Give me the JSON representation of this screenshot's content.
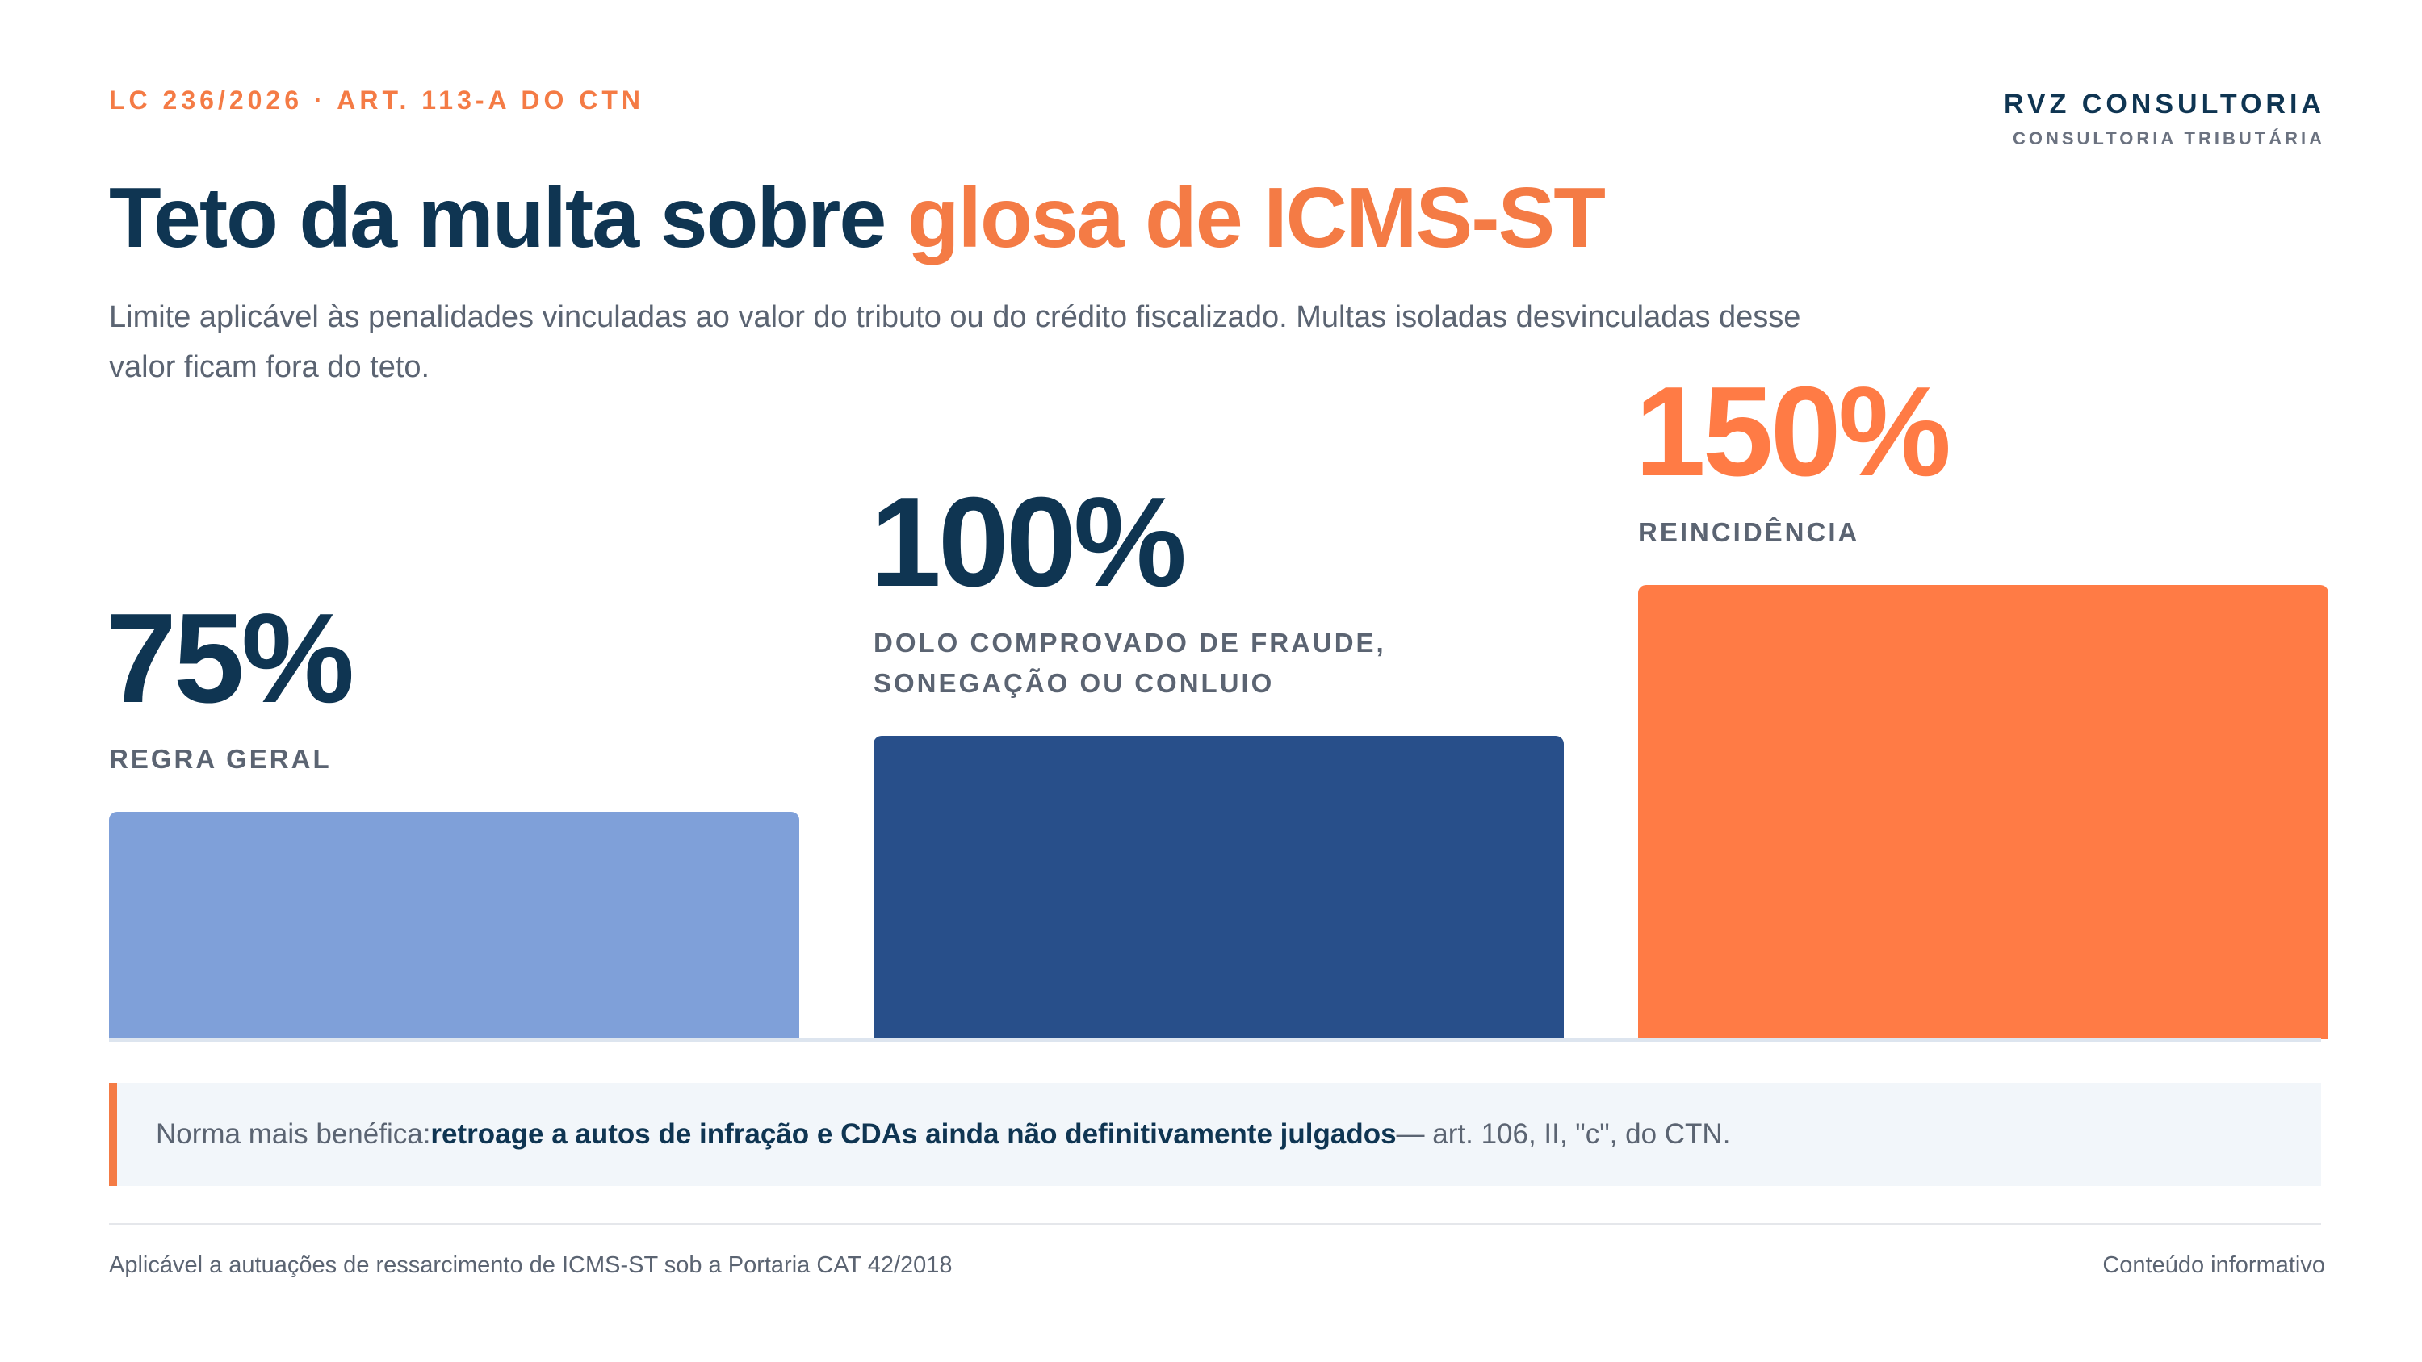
{
  "header": {
    "eyebrow": "LC 236/2026 · ART. 113-A DO CTN",
    "title_main": "Teto da multa sobre ",
    "title_highlight": "glosa de ICMS-ST",
    "subtitle": "Limite aplicável às penalidades vinculadas ao valor do tributo ou do crédito fiscalizado. Multas isoladas desvinculadas desse valor ficam fora do teto."
  },
  "brand": {
    "name": "RVZ CONSULTORIA",
    "tagline": "CONSULTORIA TRIBUTÁRIA"
  },
  "chart_data": {
    "type": "bar",
    "categories": [
      "REGRA GERAL",
      "DOLO COMPROVADO DE FRAUDE, SONEGAÇÃO OU CONLUIO",
      "REINCIDÊNCIA"
    ],
    "values": [
      75,
      100,
      150
    ],
    "value_labels": [
      "75%",
      "100%",
      "150%"
    ],
    "colors": [
      "#7fa0d9",
      "#284f8a",
      "#ff7b45"
    ],
    "value_text_colors": [
      "#0f3552",
      "#0f3552",
      "#ff7b45"
    ],
    "grid": false,
    "legend": "none"
  },
  "note": {
    "prefix": "Norma mais benéfica: ",
    "emphasis": "retroage a autos de infração e CDAs ainda não definitivamente julgados",
    "suffix": " — art. 106, II, \"c\", do CTN."
  },
  "footer": {
    "left": "Aplicável a autuações de ressarcimento de ICMS-ST sob a Portaria CAT 42/2018",
    "right": "Conteúdo informativo"
  }
}
